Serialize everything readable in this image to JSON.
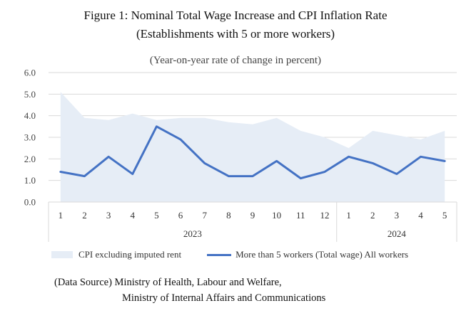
{
  "title_line1": "Figure 1: Nominal Total Wage Increase and CPI Inflation Rate",
  "title_line2": "(Establishments with 5 or more workers)",
  "subtitle": "(Year-on-year rate of change in percent)",
  "source_line1": "(Data Source) Ministry of Health, Labour and Welfare,",
  "source_line2": "Ministry of Internal Affairs and Communications",
  "colors": {
    "area": "#e6edf6",
    "line": "#4472c4",
    "grid": "#d9d9d9"
  },
  "chart_data": {
    "type": "line",
    "x": [
      "1",
      "2",
      "3",
      "4",
      "5",
      "6",
      "7",
      "8",
      "9",
      "10",
      "11",
      "12",
      "1",
      "2",
      "3",
      "4",
      "5"
    ],
    "groups": [
      {
        "label": "2023",
        "count": 12
      },
      {
        "label": "2024",
        "count": 5
      }
    ],
    "ylim": [
      0,
      6
    ],
    "yticks": [
      "0.0",
      "1.0",
      "2.0",
      "3.0",
      "4.0",
      "5.0",
      "6.0"
    ],
    "grid": true,
    "legend_position": "bottom",
    "series": [
      {
        "name": "CPI excluding imputed rent",
        "kind": "area",
        "values": [
          5.1,
          3.9,
          3.8,
          4.1,
          3.8,
          3.9,
          3.9,
          3.7,
          3.6,
          3.9,
          3.3,
          3.0,
          2.5,
          3.3,
          3.1,
          2.9,
          3.3
        ]
      },
      {
        "name": "More than 5 workers (Total wage) All workers",
        "kind": "line",
        "values": [
          1.4,
          1.2,
          2.1,
          1.3,
          3.5,
          2.9,
          1.8,
          1.2,
          1.2,
          1.9,
          1.1,
          1.4,
          2.1,
          1.8,
          1.3,
          2.1,
          1.9
        ]
      }
    ]
  }
}
